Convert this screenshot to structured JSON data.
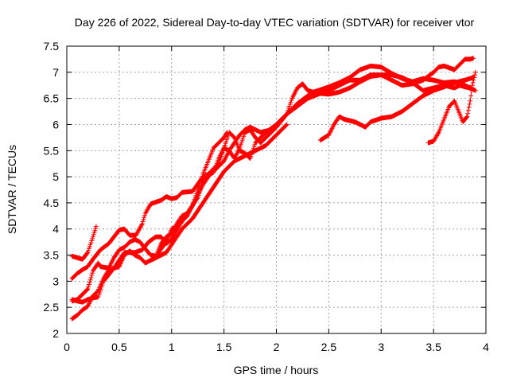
{
  "chart_data": {
    "type": "scatter",
    "title": "Day 226 of 2022, Sidereal Day-to-day VTEC variation (SDTVAR) for receiver vtor",
    "xlabel": "GPS time / hours",
    "ylabel": "SDTVAR / TECUs",
    "xlim": [
      0,
      4
    ],
    "ylim": [
      2,
      7.5
    ],
    "xticks": [
      0,
      0.5,
      1,
      1.5,
      2,
      2.5,
      3,
      3.5,
      4
    ],
    "xtick_labels": [
      "0",
      "0.5",
      "1",
      "1.5",
      "2",
      "2.5",
      "3",
      "3.5",
      "4"
    ],
    "yticks": [
      2,
      2.5,
      3,
      3.5,
      4,
      4.5,
      5,
      5.5,
      6,
      6.5,
      7,
      7.5
    ],
    "ytick_labels": [
      "2",
      "2.5",
      "3",
      "3.5",
      "4",
      "4.5",
      "5",
      "5.5",
      "6",
      "6.5",
      "7",
      "7.5"
    ],
    "marker": "+",
    "color": "#ff0000",
    "grid": true,
    "series": [
      {
        "name": "s1",
        "points": [
          [
            0.05,
            3.48
          ],
          [
            0.1,
            3.45
          ],
          [
            0.15,
            3.42
          ],
          [
            0.2,
            3.55
          ],
          [
            0.25,
            3.85
          ],
          [
            0.28,
            4.05
          ]
        ]
      },
      {
        "name": "s2",
        "points": [
          [
            0.05,
            3.05
          ],
          [
            0.1,
            3.15
          ],
          [
            0.15,
            3.22
          ],
          [
            0.2,
            3.28
          ],
          [
            0.25,
            3.42
          ],
          [
            0.32,
            3.6
          ],
          [
            0.4,
            3.72
          ],
          [
            0.5,
            3.98
          ],
          [
            0.55,
            4.0
          ],
          [
            0.6,
            3.88
          ],
          [
            0.66,
            3.88
          ],
          [
            0.72,
            4.1
          ],
          [
            0.75,
            4.3
          ],
          [
            0.8,
            4.48
          ],
          [
            0.9,
            4.55
          ],
          [
            0.95,
            4.62
          ],
          [
            1.0,
            4.58
          ],
          [
            1.05,
            4.6
          ],
          [
            1.1,
            4.7
          ],
          [
            1.2,
            4.72
          ],
          [
            1.3,
            5.0
          ],
          [
            1.35,
            5.05
          ],
          [
            1.4,
            5.08
          ],
          [
            1.45,
            5.35
          ],
          [
            1.5,
            5.55
          ],
          [
            1.55,
            5.5
          ],
          [
            1.6,
            5.35
          ],
          [
            1.65,
            5.55
          ],
          [
            1.7,
            5.85
          ],
          [
            1.75,
            5.9
          ],
          [
            1.8,
            5.75
          ],
          [
            1.85,
            5.65
          ],
          [
            1.9,
            5.75
          ],
          [
            2.0,
            5.95
          ],
          [
            2.1,
            6.2
          ],
          [
            2.15,
            6.5
          ],
          [
            2.2,
            6.7
          ],
          [
            2.25,
            6.78
          ],
          [
            2.3,
            6.65
          ],
          [
            2.35,
            6.62
          ],
          [
            2.4,
            6.65
          ],
          [
            2.5,
            6.72
          ],
          [
            2.6,
            6.8
          ],
          [
            2.7,
            6.9
          ],
          [
            2.8,
            7.05
          ],
          [
            2.9,
            7.12
          ],
          [
            3.0,
            7.1
          ],
          [
            3.1,
            6.98
          ],
          [
            3.2,
            6.88
          ],
          [
            3.3,
            6.82
          ],
          [
            3.4,
            6.88
          ],
          [
            3.5,
            6.85
          ],
          [
            3.6,
            6.8
          ],
          [
            3.7,
            6.82
          ],
          [
            3.8,
            6.75
          ],
          [
            3.9,
            6.65
          ]
        ]
      },
      {
        "name": "s3",
        "points": [
          [
            0.05,
            2.62
          ],
          [
            0.1,
            2.65
          ],
          [
            0.2,
            2.85
          ],
          [
            0.25,
            3.2
          ],
          [
            0.3,
            3.35
          ],
          [
            0.32,
            3.28
          ],
          [
            0.4,
            3.25
          ],
          [
            0.45,
            3.45
          ],
          [
            0.5,
            3.6
          ],
          [
            0.55,
            3.65
          ],
          [
            0.6,
            3.75
          ],
          [
            0.65,
            3.8
          ],
          [
            0.7,
            3.75
          ],
          [
            0.75,
            3.62
          ],
          [
            0.8,
            3.5
          ],
          [
            0.85,
            3.48
          ],
          [
            0.9,
            3.72
          ],
          [
            0.95,
            3.85
          ],
          [
            1.0,
            3.9
          ],
          [
            1.05,
            4.1
          ],
          [
            1.1,
            4.25
          ],
          [
            1.15,
            4.3
          ],
          [
            1.2,
            4.45
          ],
          [
            1.25,
            4.75
          ],
          [
            1.3,
            5.05
          ],
          [
            1.35,
            5.3
          ],
          [
            1.4,
            5.55
          ],
          [
            1.45,
            5.65
          ],
          [
            1.5,
            5.75
          ],
          [
            1.53,
            5.85
          ]
        ]
      },
      {
        "name": "s4",
        "points": [
          [
            0.05,
            2.65
          ],
          [
            0.1,
            2.62
          ],
          [
            0.15,
            2.6
          ],
          [
            0.2,
            2.65
          ],
          [
            0.25,
            2.68
          ],
          [
            0.3,
            2.7
          ],
          [
            0.35,
            3.0
          ],
          [
            0.45,
            3.25
          ],
          [
            0.55,
            3.55
          ],
          [
            0.65,
            3.55
          ],
          [
            0.72,
            3.6
          ],
          [
            0.78,
            3.75
          ],
          [
            0.85,
            3.85
          ],
          [
            0.9,
            3.85
          ],
          [
            0.95,
            3.72
          ],
          [
            1.0,
            3.8
          ],
          [
            1.1,
            4.15
          ],
          [
            1.2,
            4.45
          ],
          [
            1.25,
            4.6
          ],
          [
            1.3,
            4.95
          ],
          [
            1.35,
            5.05
          ],
          [
            1.45,
            5.25
          ],
          [
            1.55,
            5.85
          ],
          [
            1.6,
            5.75
          ],
          [
            1.65,
            5.5
          ],
          [
            1.7,
            5.45
          ],
          [
            1.75,
            5.35
          ],
          [
            1.8,
            5.65
          ],
          [
            1.9,
            5.85
          ],
          [
            2.0,
            6.0
          ],
          [
            2.1,
            6.2
          ],
          [
            2.2,
            6.35
          ],
          [
            2.3,
            6.5
          ],
          [
            2.4,
            6.58
          ],
          [
            2.5,
            6.65
          ],
          [
            2.6,
            6.75
          ],
          [
            2.7,
            6.85
          ],
          [
            2.8,
            6.85
          ],
          [
            2.9,
            6.95
          ],
          [
            3.0,
            6.95
          ],
          [
            3.1,
            6.85
          ],
          [
            3.2,
            6.75
          ],
          [
            3.3,
            6.78
          ],
          [
            3.4,
            6.85
          ],
          [
            3.5,
            7.0
          ],
          [
            3.55,
            7.1
          ],
          [
            3.6,
            7.12
          ],
          [
            3.7,
            7.05
          ],
          [
            3.75,
            7.15
          ],
          [
            3.8,
            7.25
          ],
          [
            3.85,
            7.25
          ],
          [
            3.88,
            7.27
          ]
        ]
      },
      {
        "name": "s5",
        "points": [
          [
            0.05,
            2.28
          ],
          [
            0.1,
            2.35
          ],
          [
            0.15,
            2.45
          ],
          [
            0.2,
            2.52
          ],
          [
            0.25,
            2.72
          ],
          [
            0.3,
            2.82
          ],
          [
            0.35,
            3.05
          ],
          [
            0.4,
            3.22
          ],
          [
            0.5,
            3.28
          ],
          [
            0.55,
            3.5
          ],
          [
            0.6,
            3.58
          ],
          [
            0.65,
            3.5
          ],
          [
            0.7,
            3.45
          ],
          [
            0.75,
            3.35
          ],
          [
            0.8,
            3.4
          ],
          [
            0.85,
            3.45
          ],
          [
            0.9,
            3.62
          ],
          [
            0.95,
            3.75
          ],
          [
            1.0,
            4.0
          ],
          [
            1.05,
            4.05
          ],
          [
            1.1,
            4.15
          ],
          [
            1.15,
            4.25
          ],
          [
            1.2,
            4.45
          ],
          [
            1.25,
            4.65
          ],
          [
            1.3,
            4.85
          ],
          [
            1.35,
            5.0
          ],
          [
            1.4,
            5.1
          ],
          [
            1.45,
            5.2
          ],
          [
            1.5,
            5.3
          ],
          [
            1.55,
            5.5
          ],
          [
            1.6,
            5.65
          ],
          [
            1.65,
            5.8
          ],
          [
            1.7,
            5.9
          ],
          [
            1.75,
            5.95
          ],
          [
            1.85,
            5.85
          ],
          [
            1.95,
            5.9
          ],
          [
            2.05,
            6.1
          ],
          [
            2.1,
            6.2
          ],
          [
            2.15,
            6.3
          ],
          [
            2.2,
            6.4
          ],
          [
            2.3,
            6.55
          ],
          [
            2.4,
            6.6
          ],
          [
            2.5,
            6.58
          ],
          [
            2.6,
            6.62
          ],
          [
            2.7,
            6.7
          ],
          [
            2.8,
            6.82
          ],
          [
            2.9,
            6.92
          ],
          [
            3.0,
            6.95
          ],
          [
            3.1,
            6.95
          ],
          [
            3.2,
            6.9
          ],
          [
            3.3,
            6.8
          ],
          [
            3.4,
            6.65
          ],
          [
            3.5,
            6.7
          ],
          [
            3.6,
            6.75
          ],
          [
            3.7,
            6.7
          ],
          [
            3.75,
            6.75
          ],
          [
            3.8,
            6.72
          ],
          [
            3.85,
            6.7
          ]
        ]
      },
      {
        "name": "s6",
        "points": [
          [
            0.82,
            3.42
          ],
          [
            0.85,
            3.45
          ],
          [
            0.9,
            3.5
          ],
          [
            0.95,
            3.55
          ],
          [
            1.0,
            3.7
          ],
          [
            1.05,
            3.85
          ],
          [
            1.1,
            4.0
          ],
          [
            1.2,
            4.2
          ],
          [
            1.3,
            4.5
          ],
          [
            1.4,
            4.8
          ],
          [
            1.5,
            5.1
          ],
          [
            1.6,
            5.3
          ],
          [
            1.7,
            5.4
          ],
          [
            1.8,
            5.5
          ],
          [
            1.9,
            5.6
          ],
          [
            2.0,
            5.8
          ],
          [
            2.1,
            6.0
          ]
        ]
      },
      {
        "name": "s7",
        "points": [
          [
            2.42,
            5.7
          ],
          [
            2.5,
            5.8
          ],
          [
            2.55,
            6.0
          ],
          [
            2.6,
            6.15
          ],
          [
            2.65,
            6.1
          ],
          [
            2.75,
            6.05
          ],
          [
            2.85,
            5.95
          ],
          [
            2.9,
            6.05
          ],
          [
            3.0,
            6.12
          ],
          [
            3.1,
            6.15
          ],
          [
            3.2,
            6.25
          ],
          [
            3.3,
            6.4
          ],
          [
            3.4,
            6.55
          ],
          [
            3.5,
            6.65
          ],
          [
            3.6,
            6.72
          ],
          [
            3.7,
            6.8
          ],
          [
            3.8,
            6.85
          ],
          [
            3.88,
            6.9
          ]
        ]
      },
      {
        "name": "s8",
        "points": [
          [
            3.45,
            5.65
          ],
          [
            3.5,
            5.68
          ],
          [
            3.55,
            5.85
          ],
          [
            3.6,
            6.1
          ],
          [
            3.65,
            6.35
          ],
          [
            3.7,
            6.45
          ],
          [
            3.75,
            6.2
          ],
          [
            3.78,
            6.05
          ],
          [
            3.82,
            6.15
          ],
          [
            3.85,
            6.45
          ],
          [
            3.87,
            6.75
          ],
          [
            3.9,
            7.0
          ]
        ]
      }
    ]
  }
}
